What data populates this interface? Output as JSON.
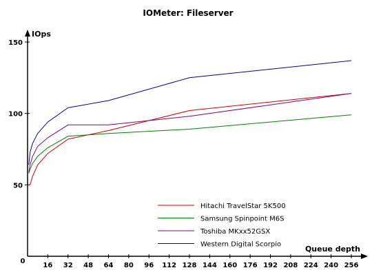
{
  "chart_data": {
    "type": "line",
    "title": "IOMeter: Fileserver",
    "ylabel": "IOps",
    "xlabel": "Queue depth",
    "x_ticks": [
      0,
      16,
      32,
      48,
      64,
      80,
      96,
      112,
      128,
      144,
      160,
      176,
      192,
      208,
      224,
      240,
      256
    ],
    "y_ticks": [
      50,
      100,
      150
    ],
    "xlim": [
      0,
      256
    ],
    "ylim": [
      0,
      150
    ],
    "y_origin_label": "0",
    "legend_position": "bottom-right (inside plot)",
    "grid": false,
    "series": [
      {
        "name": "Hitachi TravelStar 5K500",
        "color": "#cc0000",
        "x": [
          1,
          2,
          4,
          8,
          16,
          32,
          64,
          128,
          256
        ],
        "y": [
          50,
          50,
          56,
          64,
          72,
          82,
          88,
          102,
          114
        ]
      },
      {
        "name": "Samsung Spinpoint M6S",
        "color": "#008000",
        "x": [
          1,
          2,
          4,
          8,
          16,
          32,
          64,
          128,
          256
        ],
        "y": [
          58,
          61,
          65,
          70,
          76,
          84,
          86,
          89,
          99
        ]
      },
      {
        "name": "Toshiba MKxx52GSX",
        "color": "#800080",
        "x": [
          1,
          2,
          4,
          8,
          16,
          32,
          64,
          128,
          256
        ],
        "y": [
          59,
          64,
          70,
          77,
          83,
          92,
          92,
          98,
          114
        ]
      },
      {
        "name": "Western Digital Scorpio",
        "color": "#000099",
        "x": [
          1,
          2,
          4,
          8,
          16,
          32,
          64,
          128,
          256
        ],
        "y": [
          64,
          73,
          79,
          86,
          94,
          104,
          109,
          125,
          137
        ]
      }
    ]
  }
}
